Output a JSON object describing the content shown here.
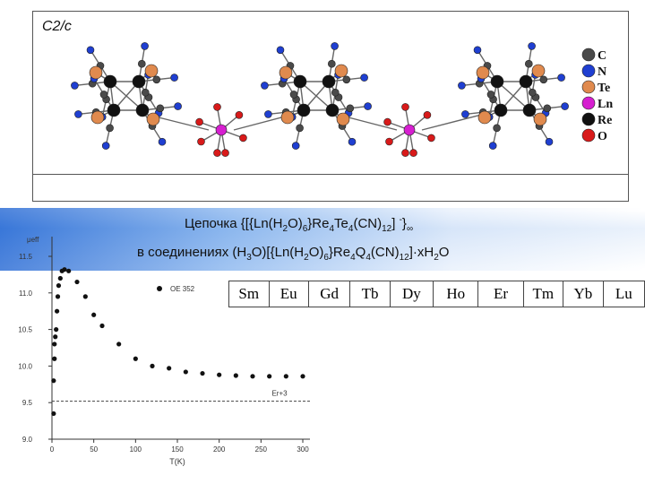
{
  "structure": {
    "space_group": "C2/c",
    "legend": [
      {
        "symbol": "C",
        "color": "#4a4a4a"
      },
      {
        "symbol": "N",
        "color": "#1f3fd1"
      },
      {
        "symbol": "Te",
        "color": "#e08a4e"
      },
      {
        "symbol": "Ln",
        "color": "#d61fd0"
      },
      {
        "symbol": "Re",
        "color": "#111111"
      },
      {
        "symbol": "O",
        "color": "#d81a1a"
      }
    ]
  },
  "caption": {
    "line1": "Цепочка {[{Ln(H<sub>2</sub>O)<sub>6</sub>}Re<sub>4</sub>Te<sub>4</sub>(CN)<sub>12</sub>] <sup>-</sup>}<sub>∞</sub>",
    "line2": "в соединениях (H<sub>3</sub>O)[{Ln(H<sub>2</sub>O)<sub>6</sub>}Re<sub>4</sub>Q<sub>4</sub>(CN)<sub>12</sub>]·xH<sub>2</sub>O"
  },
  "elements": [
    "Sm",
    "Eu",
    "Gd",
    "Tb",
    "Dy",
    "Ho",
    "Er",
    "Tm",
    "Yb",
    "Lu"
  ],
  "chart_data": {
    "type": "scatter",
    "ylabel": "μeff",
    "xlabel": "T(K)",
    "xlim": [
      0,
      300
    ],
    "ylim": [
      9.0,
      11.5
    ],
    "xticks": [
      "0",
      "50",
      "100",
      "150",
      "200",
      "250",
      "300"
    ],
    "yticks": [
      "9.0",
      "9.5",
      "10.0",
      "10.5",
      "11.0",
      "11.5"
    ],
    "series": [
      {
        "name": "OE 352",
        "x": [
          2,
          2,
          3,
          3,
          4,
          5,
          6,
          7,
          8,
          10,
          12,
          15,
          20,
          30,
          40,
          50,
          60,
          80,
          100,
          120,
          140,
          160,
          180,
          200,
          220,
          240,
          260,
          280,
          300
        ],
        "y": [
          9.35,
          9.8,
          10.1,
          10.3,
          10.4,
          10.5,
          10.75,
          10.95,
          11.1,
          11.2,
          11.3,
          11.32,
          11.3,
          11.15,
          10.95,
          10.7,
          10.55,
          10.3,
          10.1,
          10.0,
          9.97,
          9.92,
          9.9,
          9.88,
          9.87,
          9.86,
          9.86,
          9.86,
          9.86
        ]
      }
    ],
    "reference_line": {
      "label": "Er+3",
      "y": 9.52
    }
  }
}
